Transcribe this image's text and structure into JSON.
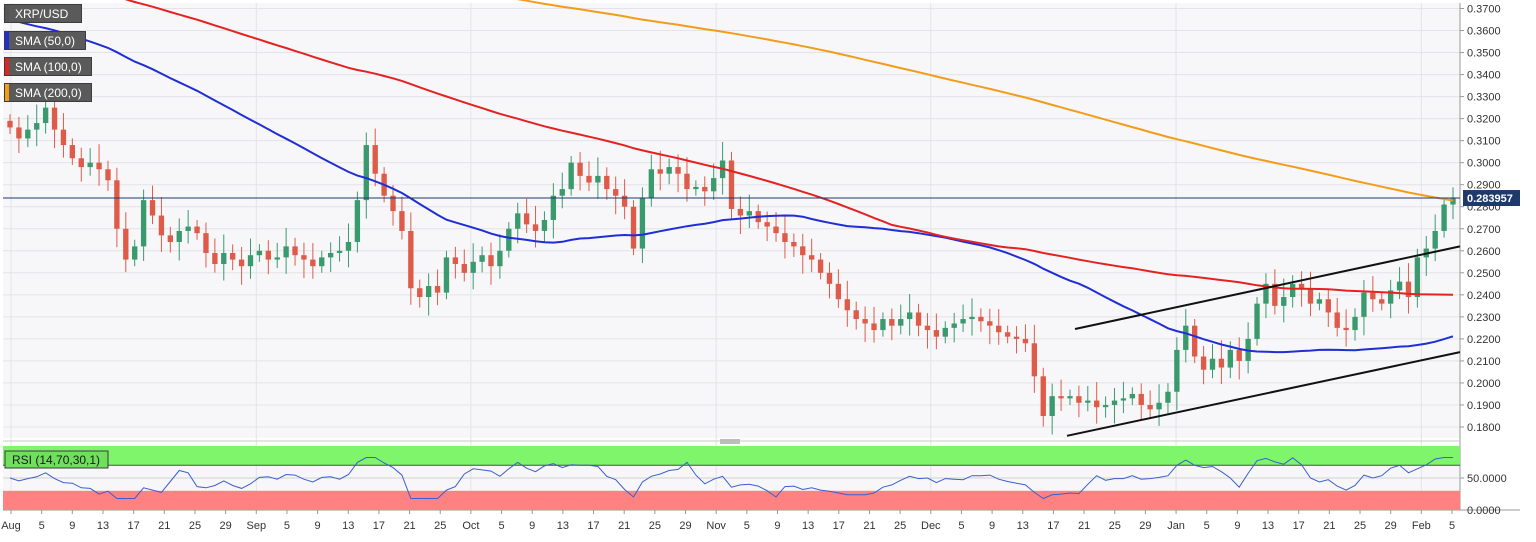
{
  "chart_data": [
    {
      "type": "candlestick",
      "symbol": "XRP/USD",
      "last_price": "0.283957",
      "ylim": [
        0.175,
        0.3725
      ],
      "y_ticks": [
        "0.1800",
        "0.1900",
        "0.2000",
        "0.2100",
        "0.2200",
        "0.2300",
        "0.2400",
        "0.2500",
        "0.2600",
        "0.2700",
        "0.2800",
        "0.2900",
        "0.3000",
        "0.3100",
        "0.3200",
        "0.3300",
        "0.3400",
        "0.3500",
        "0.3600",
        "0.3700"
      ],
      "x_ticks": [
        "Aug",
        "5",
        "9",
        "13",
        "17",
        "21",
        "25",
        "29",
        "Sep",
        "5",
        "9",
        "13",
        "17",
        "21",
        "25",
        "Oct",
        "5",
        "9",
        "13",
        "17",
        "21",
        "25",
        "29",
        "Nov",
        "5",
        "9",
        "13",
        "17",
        "21",
        "25",
        "Dec",
        "5",
        "9",
        "13",
        "17",
        "21",
        "25",
        "29",
        "Jan",
        "5",
        "9",
        "13",
        "17",
        "21",
        "25",
        "29",
        "Feb",
        "5"
      ],
      "grid": true,
      "legend": [
        {
          "label": "XRP/USD",
          "color": "#555555"
        },
        {
          "label": "SMA (50,0)",
          "color": "#1f2ed6"
        },
        {
          "label": "SMA (100,0)",
          "color": "#e52222"
        },
        {
          "label": "SMA (200,0)",
          "color": "#f39c1a"
        }
      ],
      "candles_close": [
        0.316,
        0.311,
        0.315,
        0.318,
        0.325,
        0.315,
        0.308,
        0.302,
        0.298,
        0.3,
        0.297,
        0.292,
        0.27,
        0.256,
        0.262,
        0.283,
        0.276,
        0.267,
        0.264,
        0.269,
        0.271,
        0.268,
        0.259,
        0.254,
        0.259,
        0.256,
        0.253,
        0.258,
        0.26,
        0.256,
        0.257,
        0.262,
        0.258,
        0.256,
        0.253,
        0.257,
        0.259,
        0.26,
        0.264,
        0.283,
        0.308,
        0.295,
        0.285,
        0.278,
        0.269,
        0.243,
        0.239,
        0.244,
        0.241,
        0.257,
        0.254,
        0.25,
        0.255,
        0.258,
        0.253,
        0.26,
        0.27,
        0.277,
        0.272,
        0.269,
        0.274,
        0.285,
        0.288,
        0.3,
        0.294,
        0.291,
        0.294,
        0.288,
        0.285,
        0.28,
        0.261,
        0.284,
        0.297,
        0.295,
        0.298,
        0.295,
        0.288,
        0.289,
        0.287,
        0.293,
        0.301,
        0.279,
        0.276,
        0.278,
        0.273,
        0.271,
        0.268,
        0.264,
        0.262,
        0.258,
        0.256,
        0.25,
        0.245,
        0.238,
        0.233,
        0.229,
        0.227,
        0.224,
        0.229,
        0.226,
        0.229,
        0.232,
        0.226,
        0.224,
        0.221,
        0.225,
        0.227,
        0.229,
        0.23,
        0.228,
        0.226,
        0.223,
        0.221,
        0.22,
        0.218,
        0.203,
        0.185,
        0.194,
        0.193,
        0.194,
        0.191,
        0.192,
        0.189,
        0.19,
        0.192,
        0.193,
        0.195,
        0.19,
        0.188,
        0.191,
        0.196,
        0.215,
        0.226,
        0.212,
        0.206,
        0.211,
        0.207,
        0.215,
        0.21,
        0.22,
        0.236,
        0.245,
        0.235,
        0.239,
        0.245,
        0.243,
        0.236,
        0.238,
        0.232,
        0.225,
        0.224,
        0.23,
        0.241,
        0.238,
        0.236,
        0.242,
        0.246,
        0.239,
        0.257,
        0.261,
        0.269,
        0.281,
        0.284
      ]
    },
    {
      "type": "rsi",
      "label": "RSI (14,70,30,1)",
      "ylim": [
        0,
        100
      ],
      "y_ticks": [
        "50.0000",
        "0.0000"
      ],
      "upper_band": 70,
      "lower_band": 30,
      "colors": {
        "overbought": "#7ef56b",
        "oversold": "#ff8181",
        "line": "#3a5fd0"
      }
    }
  ]
}
